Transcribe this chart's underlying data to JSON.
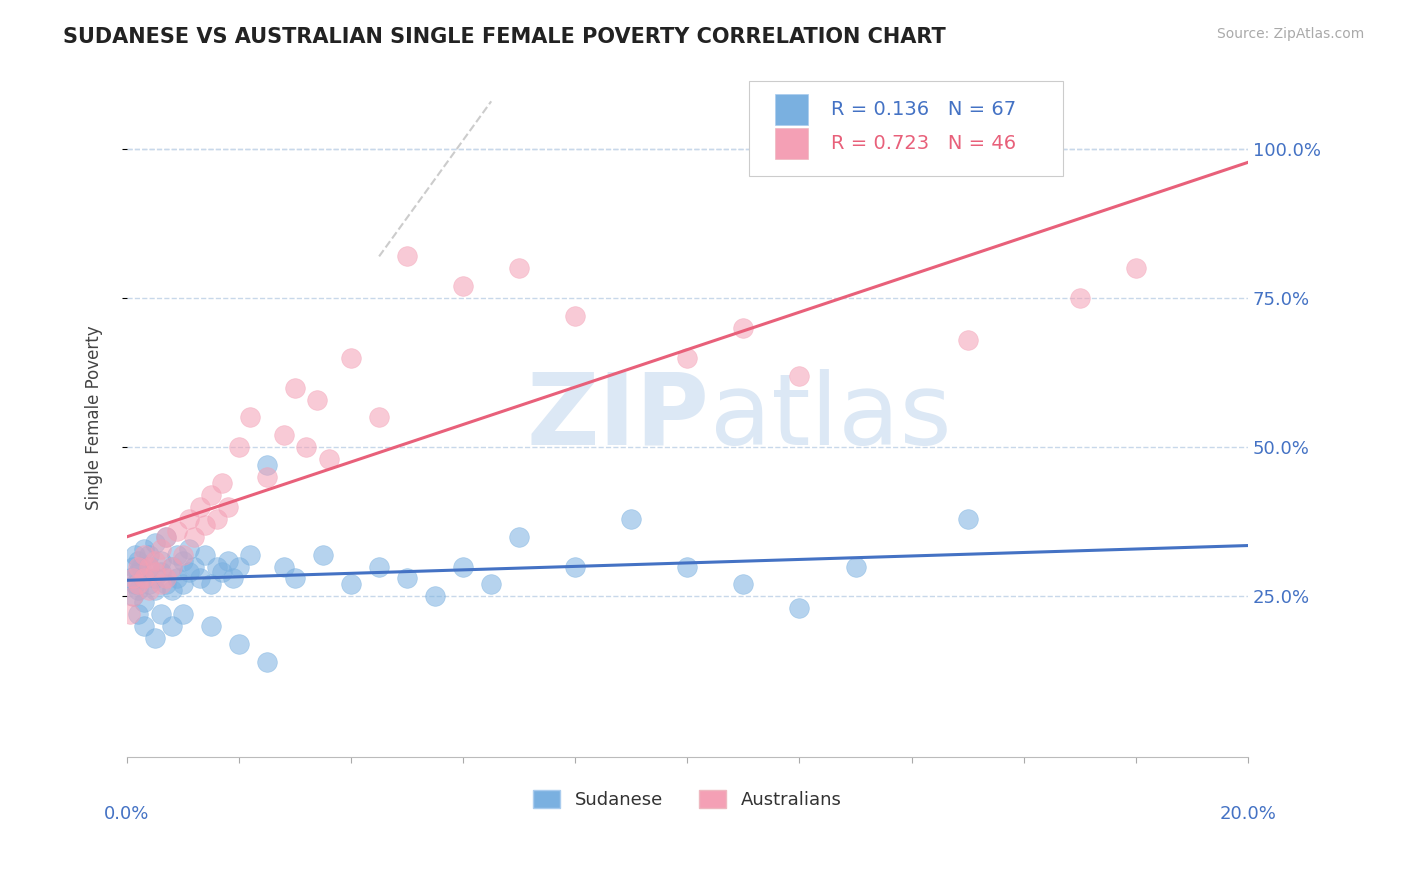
{
  "title": "SUDANESE VS AUSTRALIAN SINGLE FEMALE POVERTY CORRELATION CHART",
  "source": "Source: ZipAtlas.com",
  "ylabel": "Single Female Poverty",
  "right_ytick_labels": [
    "25.0%",
    "50.0%",
    "75.0%",
    "100.0%"
  ],
  "right_yticks": [
    0.25,
    0.5,
    0.75,
    1.0
  ],
  "legend_entries": [
    {
      "label": "Sudanese",
      "R": 0.136,
      "N": 67
    },
    {
      "label": "Australians",
      "R": 0.723,
      "N": 46
    }
  ],
  "sudanese_color": "#7ab0e0",
  "australians_color": "#f4a0b5",
  "sudanese_line_color": "#4472c4",
  "australians_line_color": "#e8607a",
  "watermark_zip": "ZIP",
  "watermark_atlas": "atlas",
  "watermark_color": "#dce8f5",
  "background_color": "#ffffff",
  "grid_color": "#c8d8ea",
  "x_range": [
    0.0,
    0.2
  ],
  "y_range": [
    -0.02,
    1.12
  ],
  "sudanese_x": [
    0.0005,
    0.001,
    0.001,
    0.0015,
    0.0015,
    0.002,
    0.002,
    0.002,
    0.0025,
    0.003,
    0.003,
    0.003,
    0.004,
    0.004,
    0.004,
    0.005,
    0.005,
    0.005,
    0.006,
    0.006,
    0.007,
    0.007,
    0.008,
    0.008,
    0.009,
    0.009,
    0.01,
    0.01,
    0.011,
    0.011,
    0.012,
    0.013,
    0.014,
    0.015,
    0.016,
    0.017,
    0.018,
    0.019,
    0.02,
    0.022,
    0.025,
    0.028,
    0.03,
    0.035,
    0.04,
    0.045,
    0.05,
    0.055,
    0.06,
    0.065,
    0.07,
    0.08,
    0.09,
    0.1,
    0.11,
    0.12,
    0.13,
    0.15,
    0.002,
    0.003,
    0.005,
    0.006,
    0.008,
    0.01,
    0.015,
    0.02,
    0.025
  ],
  "sudanese_y": [
    0.28,
    0.3,
    0.25,
    0.32,
    0.27,
    0.29,
    0.26,
    0.31,
    0.3,
    0.28,
    0.33,
    0.24,
    0.3,
    0.27,
    0.32,
    0.28,
    0.34,
    0.26,
    0.29,
    0.31,
    0.27,
    0.35,
    0.3,
    0.26,
    0.32,
    0.28,
    0.31,
    0.27,
    0.33,
    0.29,
    0.3,
    0.28,
    0.32,
    0.27,
    0.3,
    0.29,
    0.31,
    0.28,
    0.3,
    0.32,
    0.47,
    0.3,
    0.28,
    0.32,
    0.27,
    0.3,
    0.28,
    0.25,
    0.3,
    0.27,
    0.35,
    0.3,
    0.38,
    0.3,
    0.27,
    0.23,
    0.3,
    0.38,
    0.22,
    0.2,
    0.18,
    0.22,
    0.2,
    0.22,
    0.2,
    0.17,
    0.14
  ],
  "australians_x": [
    0.0005,
    0.001,
    0.001,
    0.002,
    0.002,
    0.003,
    0.003,
    0.004,
    0.004,
    0.005,
    0.005,
    0.006,
    0.006,
    0.007,
    0.007,
    0.008,
    0.009,
    0.01,
    0.011,
    0.012,
    0.013,
    0.014,
    0.015,
    0.016,
    0.017,
    0.018,
    0.02,
    0.022,
    0.025,
    0.028,
    0.03,
    0.032,
    0.034,
    0.036,
    0.04,
    0.045,
    0.05,
    0.06,
    0.07,
    0.08,
    0.1,
    0.11,
    0.12,
    0.15,
    0.17,
    0.18
  ],
  "australians_y": [
    0.22,
    0.25,
    0.28,
    0.27,
    0.3,
    0.28,
    0.32,
    0.3,
    0.26,
    0.29,
    0.31,
    0.27,
    0.33,
    0.28,
    0.35,
    0.3,
    0.36,
    0.32,
    0.38,
    0.35,
    0.4,
    0.37,
    0.42,
    0.38,
    0.44,
    0.4,
    0.5,
    0.55,
    0.45,
    0.52,
    0.6,
    0.5,
    0.58,
    0.48,
    0.65,
    0.55,
    0.82,
    0.77,
    0.8,
    0.72,
    0.65,
    0.7,
    0.62,
    0.68,
    0.75,
    0.8
  ]
}
